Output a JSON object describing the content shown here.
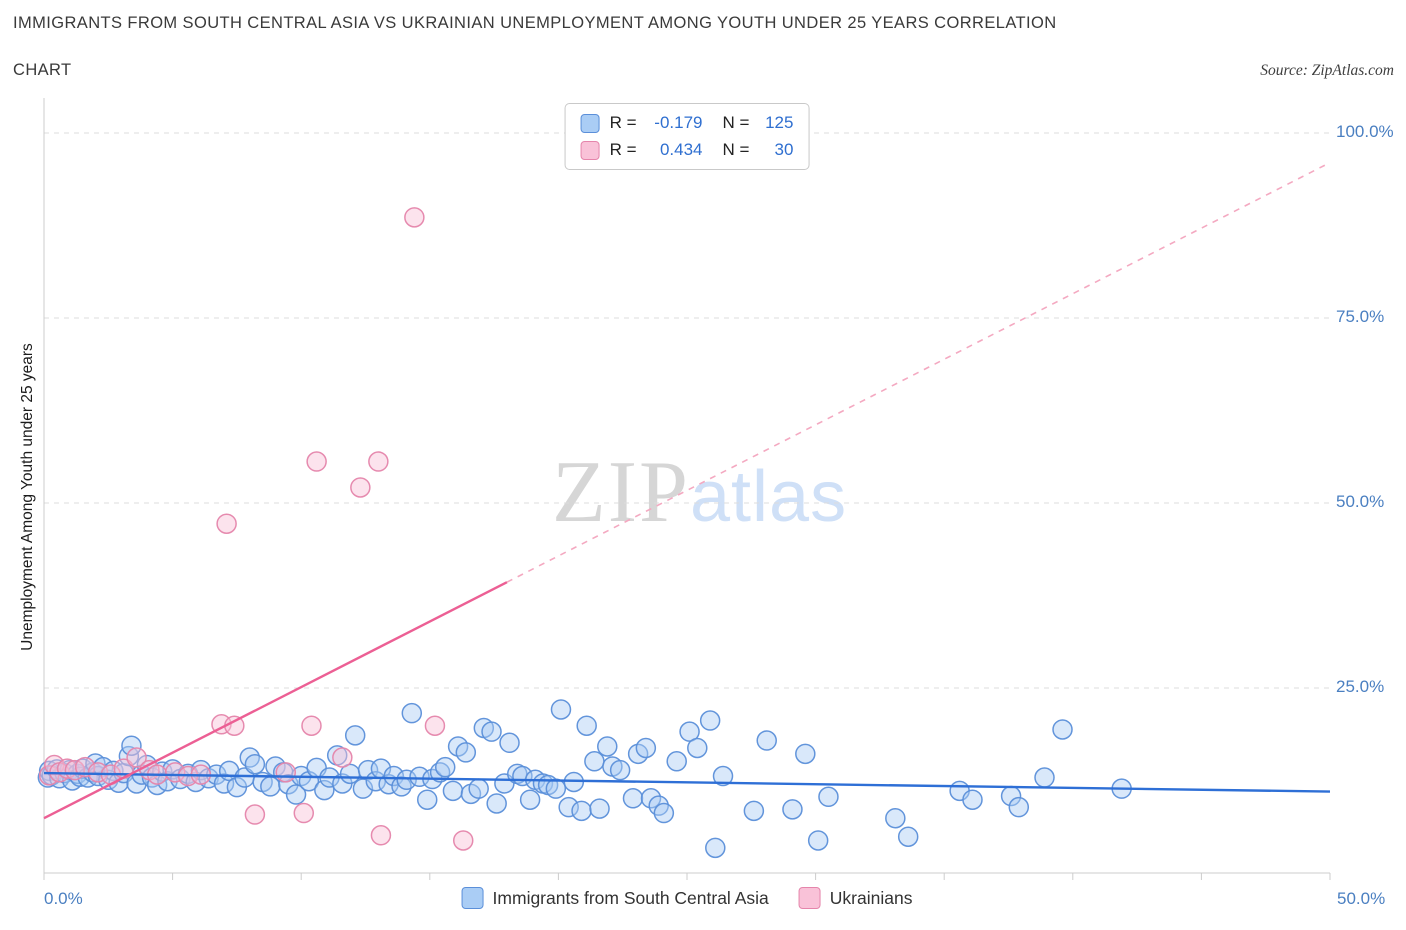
{
  "header": {
    "title_line1": "IMMIGRANTS FROM SOUTH CENTRAL ASIA VS UKRAINIAN UNEMPLOYMENT AMONG YOUTH UNDER 25 YEARS CORRELATION",
    "title_line2": "CHART",
    "source": "Source: ZipAtlas.com"
  },
  "watermark": {
    "part1": "ZIP",
    "part2": "atlas"
  },
  "legend_box": {
    "rows": [
      {
        "r_label": "R =",
        "r_value": "-0.179",
        "n_label": "N =",
        "n_value": "125"
      },
      {
        "r_label": "R =",
        "r_value": "0.434",
        "n_label": "N =",
        "n_value": "30"
      }
    ]
  },
  "axes": {
    "y_label": "Unemployment Among Youth under 25 years",
    "y_ticks": [
      "100.0%",
      "75.0%",
      "50.0%",
      "25.0%"
    ],
    "x_ticks": [
      "0.0%",
      "50.0%"
    ]
  },
  "bottom_legend": [
    {
      "label": "Immigrants from South Central Asia"
    },
    {
      "label": "Ukrainians"
    }
  ],
  "chart_data": {
    "type": "scatter",
    "title": "Immigrants from South Central Asia vs Ukrainian Unemployment Among Youth under 25 years Correlation Chart",
    "xlabel": "Immigrants from South Central Asia (%)",
    "ylabel": "Unemployment Among Youth under 25 years (%)",
    "xlim": [
      0,
      50
    ],
    "ylim": [
      0,
      100
    ],
    "grid": true,
    "grid_y": [
      25,
      50,
      75,
      100
    ],
    "x_tick_step": 5,
    "legend_position": "top-center",
    "series": [
      {
        "name": "Immigrants from South Central Asia",
        "R": -0.179,
        "N": 125,
        "fill": "#aacdf5",
        "stroke": "#5b8fd9",
        "line_color": "#2e6fd6",
        "points": [
          [
            0.15,
            12.9
          ],
          [
            0.2,
            13.8
          ],
          [
            0.3,
            13.2
          ],
          [
            0.5,
            14.0
          ],
          [
            0.6,
            12.8
          ],
          [
            0.8,
            13.5
          ],
          [
            1.0,
            13.9
          ],
          [
            1.1,
            12.5
          ],
          [
            1.3,
            13.4
          ],
          [
            1.4,
            13.0
          ],
          [
            1.5,
            14.1
          ],
          [
            1.7,
            12.9
          ],
          [
            1.9,
            13.6
          ],
          [
            2.0,
            14.8
          ],
          [
            2.1,
            13.1
          ],
          [
            2.3,
            14.3
          ],
          [
            2.5,
            12.6
          ],
          [
            2.7,
            13.8
          ],
          [
            2.9,
            12.2
          ],
          [
            3.1,
            13.5
          ],
          [
            3.3,
            15.8
          ],
          [
            3.4,
            17.2
          ],
          [
            3.6,
            12.1
          ],
          [
            3.8,
            13.3
          ],
          [
            4.0,
            14.6
          ],
          [
            4.2,
            12.9
          ],
          [
            4.4,
            11.9
          ],
          [
            4.6,
            13.7
          ],
          [
            4.8,
            12.4
          ],
          [
            5.0,
            14.0
          ],
          [
            5.3,
            12.7
          ],
          [
            5.6,
            13.4
          ],
          [
            5.9,
            12.3
          ],
          [
            6.1,
            13.9
          ],
          [
            6.4,
            12.8
          ],
          [
            6.7,
            13.3
          ],
          [
            7.0,
            12.1
          ],
          [
            7.2,
            13.8
          ],
          [
            7.5,
            11.6
          ],
          [
            7.8,
            12.9
          ],
          [
            8.0,
            15.6
          ],
          [
            8.2,
            14.7
          ],
          [
            8.5,
            12.3
          ],
          [
            8.8,
            11.7
          ],
          [
            9.0,
            14.4
          ],
          [
            9.3,
            13.6
          ],
          [
            9.5,
            12.0
          ],
          [
            9.8,
            10.6
          ],
          [
            10.0,
            13.1
          ],
          [
            10.3,
            12.4
          ],
          [
            10.6,
            14.2
          ],
          [
            10.9,
            11.2
          ],
          [
            11.1,
            12.9
          ],
          [
            11.4,
            15.9
          ],
          [
            11.6,
            12.1
          ],
          [
            11.9,
            13.4
          ],
          [
            12.1,
            18.6
          ],
          [
            12.4,
            11.4
          ],
          [
            12.6,
            13.9
          ],
          [
            12.9,
            12.4
          ],
          [
            13.1,
            14.1
          ],
          [
            13.4,
            12.0
          ],
          [
            13.6,
            13.1
          ],
          [
            13.9,
            11.7
          ],
          [
            14.1,
            12.6
          ],
          [
            14.3,
            21.6
          ],
          [
            14.6,
            13.0
          ],
          [
            14.9,
            9.9
          ],
          [
            15.1,
            12.7
          ],
          [
            15.4,
            13.6
          ],
          [
            15.6,
            14.3
          ],
          [
            15.9,
            11.1
          ],
          [
            16.1,
            17.1
          ],
          [
            16.4,
            16.3
          ],
          [
            16.6,
            10.7
          ],
          [
            16.9,
            11.4
          ],
          [
            17.1,
            19.6
          ],
          [
            17.4,
            19.1
          ],
          [
            17.6,
            9.4
          ],
          [
            17.9,
            12.1
          ],
          [
            18.1,
            17.6
          ],
          [
            18.4,
            13.4
          ],
          [
            18.6,
            13.1
          ],
          [
            18.9,
            9.9
          ],
          [
            19.1,
            12.6
          ],
          [
            19.4,
            12.1
          ],
          [
            19.6,
            11.9
          ],
          [
            19.9,
            11.4
          ],
          [
            20.1,
            22.1
          ],
          [
            20.4,
            8.9
          ],
          [
            20.6,
            12.3
          ],
          [
            20.9,
            8.4
          ],
          [
            21.1,
            19.9
          ],
          [
            21.4,
            15.1
          ],
          [
            21.6,
            8.7
          ],
          [
            21.9,
            17.1
          ],
          [
            22.1,
            14.4
          ],
          [
            22.4,
            13.9
          ],
          [
            22.9,
            10.1
          ],
          [
            23.1,
            16.1
          ],
          [
            23.4,
            16.9
          ],
          [
            23.6,
            10.1
          ],
          [
            23.9,
            9.1
          ],
          [
            24.1,
            8.1
          ],
          [
            24.6,
            15.1
          ],
          [
            25.1,
            19.1
          ],
          [
            25.4,
            16.9
          ],
          [
            25.9,
            20.6
          ],
          [
            26.1,
            3.4
          ],
          [
            26.4,
            13.1
          ],
          [
            27.6,
            8.4
          ],
          [
            28.1,
            17.9
          ],
          [
            29.1,
            8.6
          ],
          [
            29.6,
            16.1
          ],
          [
            30.1,
            4.4
          ],
          [
            30.5,
            10.3
          ],
          [
            33.1,
            7.4
          ],
          [
            33.6,
            4.9
          ],
          [
            35.6,
            11.1
          ],
          [
            36.1,
            9.9
          ],
          [
            37.6,
            10.4
          ],
          [
            37.9,
            8.9
          ],
          [
            38.9,
            12.9
          ],
          [
            39.6,
            19.4
          ],
          [
            41.9,
            11.4
          ]
        ],
        "trend": {
          "segments": [
            {
              "x": [
                0,
                50
              ],
              "y": [
                13.5,
                11.0
              ],
              "dashed": false
            }
          ]
        }
      },
      {
        "name": "Ukrainians",
        "R": 0.434,
        "N": 30,
        "fill": "#f9c2d8",
        "stroke": "#e585ab",
        "line_color": "#ec5f94",
        "dash_color": "#f4a9c1",
        "points": [
          [
            0.2,
            13.2
          ],
          [
            0.4,
            14.6
          ],
          [
            0.6,
            13.6
          ],
          [
            0.9,
            14.1
          ],
          [
            1.2,
            13.9
          ],
          [
            1.6,
            14.3
          ],
          [
            2.1,
            13.6
          ],
          [
            2.6,
            13.3
          ],
          [
            3.1,
            14.1
          ],
          [
            3.6,
            15.6
          ],
          [
            4.1,
            13.9
          ],
          [
            4.4,
            13.3
          ],
          [
            5.1,
            13.6
          ],
          [
            5.6,
            13.1
          ],
          [
            6.1,
            13.3
          ],
          [
            6.9,
            20.1
          ],
          [
            7.1,
            47.2
          ],
          [
            7.4,
            19.9
          ],
          [
            8.2,
            7.9
          ],
          [
            9.4,
            13.6
          ],
          [
            10.1,
            8.1
          ],
          [
            10.4,
            19.9
          ],
          [
            10.6,
            55.6
          ],
          [
            11.6,
            15.6
          ],
          [
            12.3,
            52.1
          ],
          [
            13.0,
            55.6
          ],
          [
            13.1,
            5.1
          ],
          [
            14.4,
            88.6
          ],
          [
            15.2,
            19.9
          ],
          [
            16.3,
            4.4
          ]
        ],
        "trend": {
          "segments": [
            {
              "x": [
                0,
                18
              ],
              "y": [
                7.4,
                39.3
              ],
              "dashed": false
            },
            {
              "x": [
                18,
                50
              ],
              "y": [
                39.3,
                96.0
              ],
              "dashed": true
            }
          ]
        }
      }
    ]
  }
}
